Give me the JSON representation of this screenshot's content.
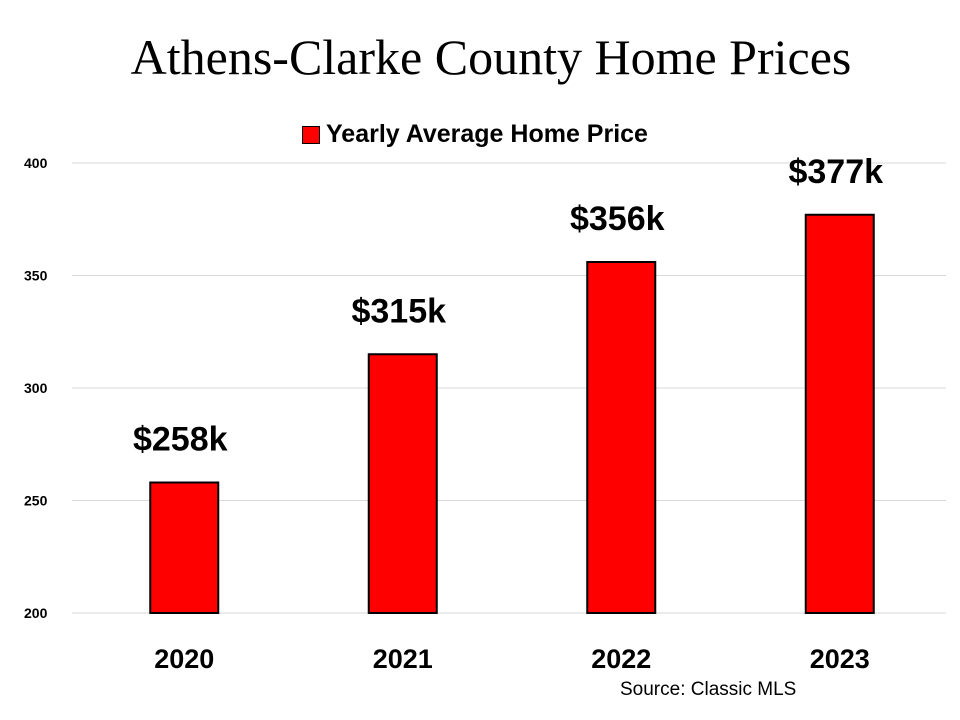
{
  "chart_data": {
    "type": "bar",
    "title": "Athens-Clarke County Home Prices",
    "categories": [
      "2020",
      "2021",
      "2022",
      "2023"
    ],
    "series": [
      {
        "name": "Yearly Average Home Price",
        "values": [
          258,
          315,
          356,
          377
        ],
        "color": "#ff0000"
      }
    ],
    "data_labels": [
      "$258k",
      "$315k",
      "$356k",
      "$377k"
    ],
    "yticks": [
      "200",
      "250",
      "300",
      "350",
      "400"
    ],
    "ylim": [
      200,
      400
    ],
    "xlabel": "",
    "ylabel": "",
    "grid": true,
    "legend": "top-center",
    "source": "Source: Classic MLS"
  }
}
